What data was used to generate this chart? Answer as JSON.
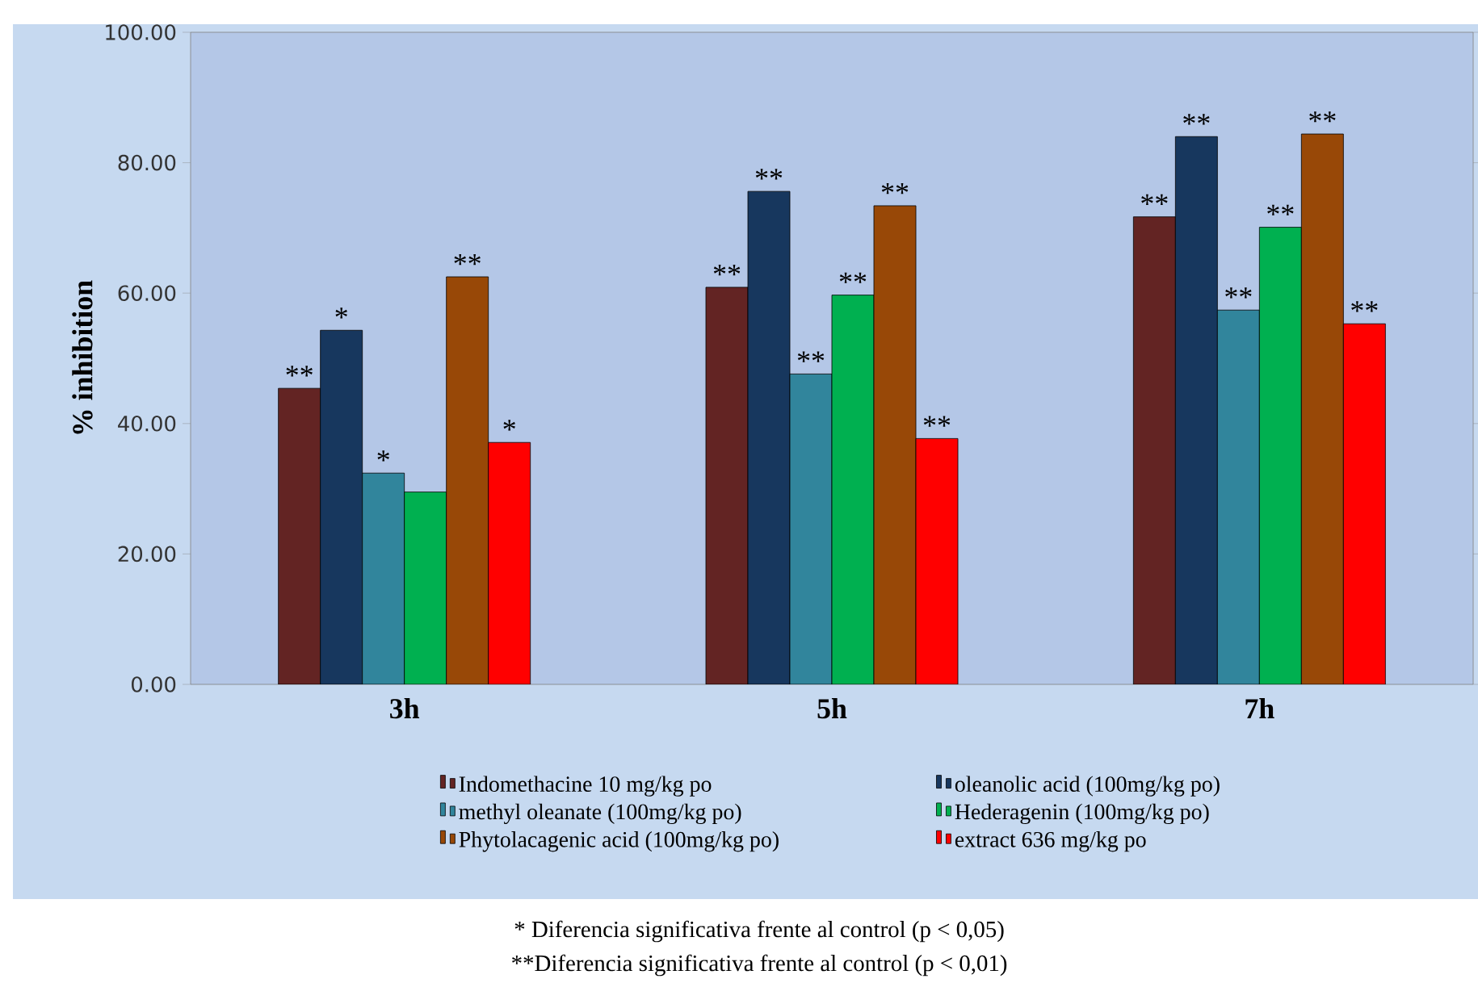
{
  "chart_data": {
    "type": "bar",
    "ylabel": "% inhibition",
    "categories": [
      "3h",
      "5h",
      "7h"
    ],
    "ylim": [
      0,
      100
    ],
    "yticks": [
      {
        "value": 0,
        "label": "0.00"
      },
      {
        "value": 20,
        "label": "20.00"
      },
      {
        "value": 40,
        "label": "40.00"
      },
      {
        "value": 60,
        "label": "60.00"
      },
      {
        "value": 80,
        "label": "80.00"
      },
      {
        "value": 100,
        "label": "100.00"
      }
    ],
    "legend": "bottom",
    "grid": false,
    "series": [
      {
        "name": "Indomethacine 10 mg/kg po",
        "color": "#632423",
        "values": [
          45.4,
          60.9,
          71.7
        ],
        "value_labels": [
          "**",
          "**",
          "**"
        ]
      },
      {
        "name": "oleanolic acid (100mg/kg po)",
        "color": "#17375e",
        "values": [
          54.3,
          75.6,
          84.0
        ],
        "value_labels": [
          "*",
          "**",
          "**"
        ]
      },
      {
        "name": "methyl oleanate (100mg/kg po)",
        "color": "#31859c",
        "values": [
          32.4,
          47.6,
          57.4
        ],
        "value_labels": [
          "*",
          "**",
          "**"
        ]
      },
      {
        "name": "Hederagenin (100mg/kg po)",
        "color": "#00b050",
        "values": [
          29.5,
          59.7,
          70.1
        ],
        "value_labels": [
          null,
          "**",
          "**"
        ]
      },
      {
        "name": "Phytolacagenic acid (100mg/kg po)",
        "color": "#984807",
        "values": [
          62.5,
          73.4,
          84.4
        ],
        "value_labels": [
          "**",
          "**",
          "**"
        ]
      },
      {
        "name": "extract 636 mg/kg po",
        "color": "#ff0000",
        "values": [
          37.1,
          37.7,
          55.3
        ],
        "value_labels": [
          "*",
          "**",
          "**"
        ]
      }
    ],
    "annotations": [
      "* Diferencia significativa frente al control (p < 0,05)",
      "**Diferencia significativa frente al control (p < 0,01)"
    ]
  }
}
